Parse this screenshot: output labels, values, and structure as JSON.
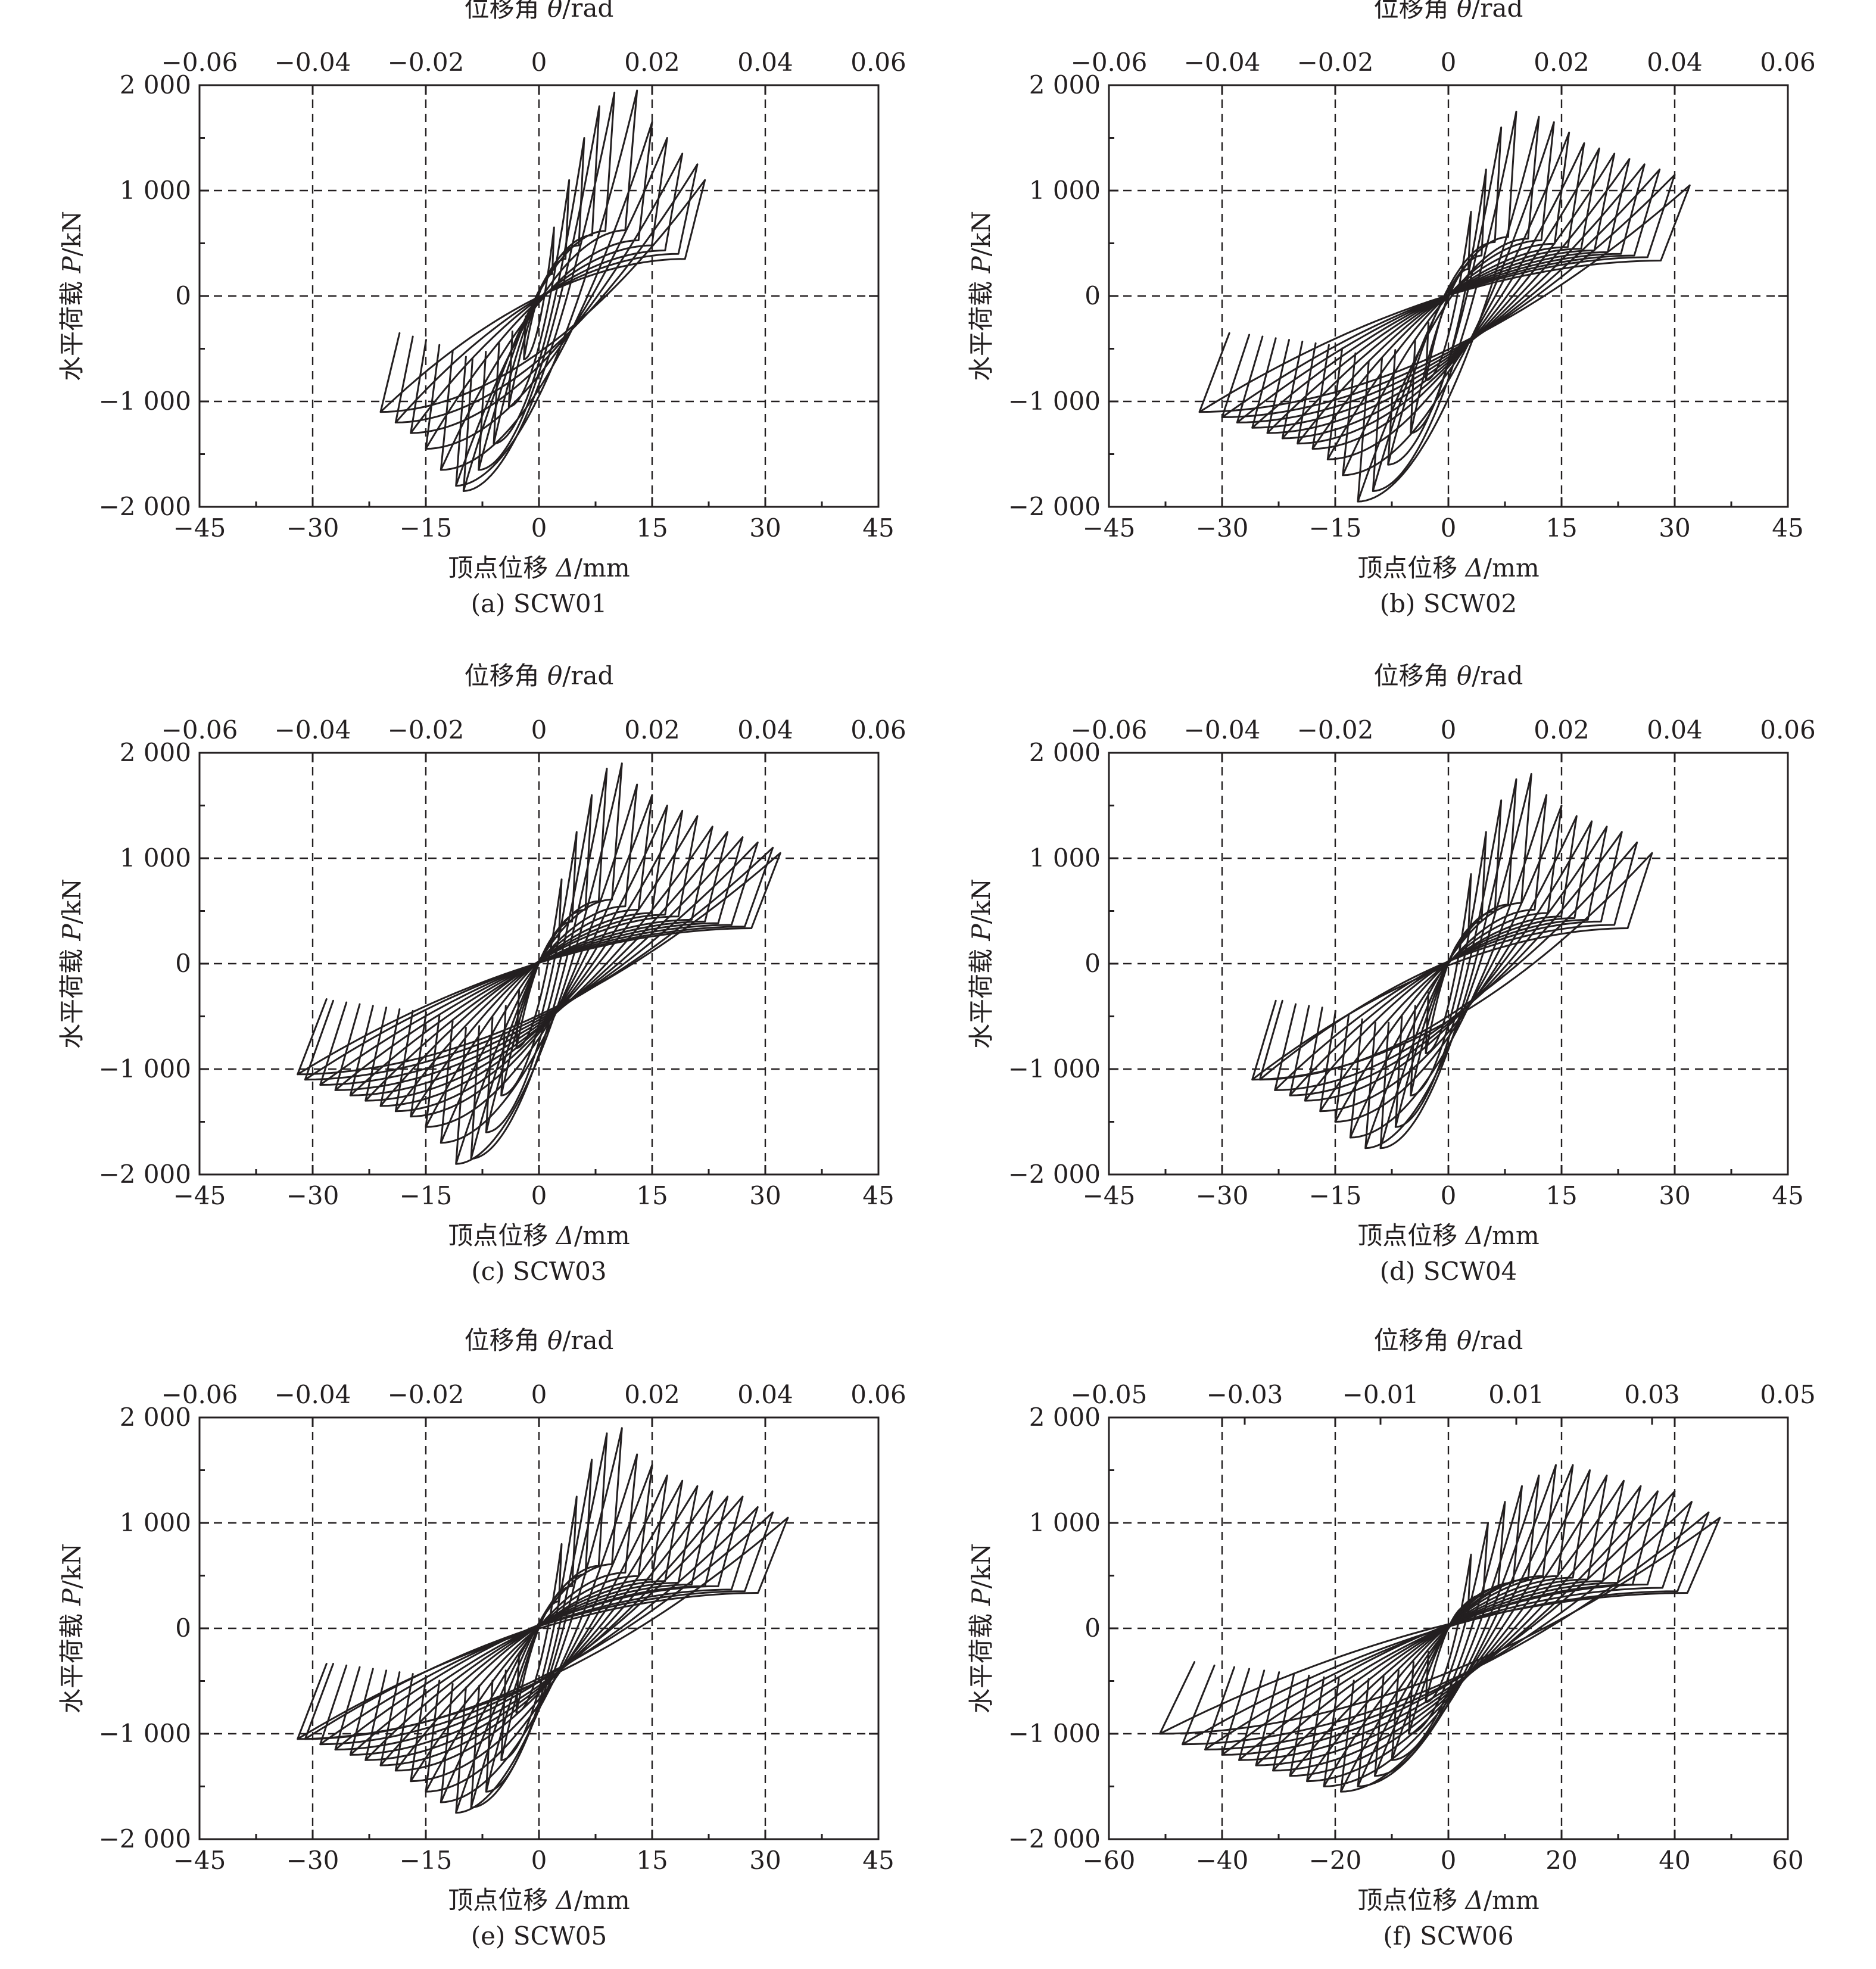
{
  "chart_data": [
    {
      "id": "SCW01",
      "type": "line",
      "caption": "(a) SCW01",
      "xlabel_prefix": "顶点位移 ",
      "xlabel_symbol": "Δ",
      "xlabel_unit": "/mm",
      "ylabel_prefix": "水平荷载 ",
      "ylabel_symbol": "P",
      "ylabel_unit": "/kN",
      "x2label_prefix": "位移角 ",
      "x2label_symbol": "θ",
      "x2label_unit": "/rad",
      "xlim": [
        -45,
        45
      ],
      "ylim": [
        -2000,
        2000
      ],
      "x2lim": [
        -0.06,
        0.06
      ],
      "xticks": [
        -45,
        -30,
        -15,
        0,
        15,
        30,
        45
      ],
      "yticks": [
        -2000,
        -1000,
        0,
        1000,
        2000
      ],
      "x2ticks": [
        -0.06,
        -0.04,
        -0.02,
        0,
        0.02,
        0.04,
        0.06
      ],
      "xtick_labels": [
        "−45",
        "−30",
        "−15",
        "0",
        "15",
        "30",
        "45"
      ],
      "ytick_labels": [
        "−2 000",
        "−1 000",
        "0",
        "1 000",
        "2 000"
      ],
      "x2tick_labels": [
        "−0.06",
        "−0.04",
        "−0.02",
        "0",
        "0.02",
        "0.04",
        "0.06"
      ],
      "grid": "dashed",
      "hysteresis_loops": [
        {
          "dmax": 2,
          "pmax": 650,
          "dmin": -2,
          "pmin": -600
        },
        {
          "dmax": 4,
          "pmax": 1100,
          "dmin": -4,
          "pmin": -1050
        },
        {
          "dmax": 6,
          "pmax": 1500,
          "dmin": -6,
          "pmin": -1400
        },
        {
          "dmax": 8,
          "pmax": 1800,
          "dmin": -8,
          "pmin": -1650
        },
        {
          "dmax": 10,
          "pmax": 1930,
          "dmin": -10,
          "pmin": -1850
        },
        {
          "dmax": 13,
          "pmax": 1950,
          "dmin": -11,
          "pmin": -1800
        },
        {
          "dmax": 15,
          "pmax": 1650,
          "dmin": -13,
          "pmin": -1650
        },
        {
          "dmax": 17,
          "pmax": 1500,
          "dmin": -15,
          "pmin": -1450
        },
        {
          "dmax": 19,
          "pmax": 1350,
          "dmin": -17,
          "pmin": -1300
        },
        {
          "dmax": 21,
          "pmax": 1250,
          "dmin": -19,
          "pmin": -1200
        },
        {
          "dmax": 22,
          "pmax": 1100,
          "dmin": -21,
          "pmin": -1100
        }
      ]
    },
    {
      "id": "SCW02",
      "type": "line",
      "caption": "(b) SCW02",
      "xlabel_prefix": "顶点位移 ",
      "xlabel_symbol": "Δ",
      "xlabel_unit": "/mm",
      "ylabel_prefix": "水平荷载 ",
      "ylabel_symbol": "P",
      "ylabel_unit": "/kN",
      "x2label_prefix": "位移角 ",
      "x2label_symbol": "θ",
      "x2label_unit": "/rad",
      "xlim": [
        -45,
        45
      ],
      "ylim": [
        -2000,
        2000
      ],
      "x2lim": [
        -0.06,
        0.06
      ],
      "xticks": [
        -45,
        -30,
        -15,
        0,
        15,
        30,
        45
      ],
      "yticks": [
        -2000,
        -1000,
        0,
        1000,
        2000
      ],
      "x2ticks": [
        -0.06,
        -0.04,
        -0.02,
        0,
        0.02,
        0.04,
        0.06
      ],
      "xtick_labels": [
        "−45",
        "−30",
        "−15",
        "0",
        "15",
        "30",
        "45"
      ],
      "ytick_labels": [
        "−2 000",
        "−1 000",
        "0",
        "1 000",
        "2 000"
      ],
      "x2tick_labels": [
        "−0.06",
        "−0.04",
        "−0.02",
        "0",
        "0.02",
        "0.04",
        "0.06"
      ],
      "grid": "dashed",
      "hysteresis_loops": [
        {
          "dmax": 3,
          "pmax": 800,
          "dmin": -3,
          "pmin": -800
        },
        {
          "dmax": 5,
          "pmax": 1200,
          "dmin": -5,
          "pmin": -1300
        },
        {
          "dmax": 7,
          "pmax": 1600,
          "dmin": -8,
          "pmin": -1600
        },
        {
          "dmax": 9,
          "pmax": 1750,
          "dmin": -10,
          "pmin": -1850
        },
        {
          "dmax": 12,
          "pmax": 1700,
          "dmin": -12,
          "pmin": -1950
        },
        {
          "dmax": 14,
          "pmax": 1650,
          "dmin": -14,
          "pmin": -1700
        },
        {
          "dmax": 16,
          "pmax": 1550,
          "dmin": -16,
          "pmin": -1550
        },
        {
          "dmax": 18,
          "pmax": 1450,
          "dmin": -18,
          "pmin": -1450
        },
        {
          "dmax": 20,
          "pmax": 1400,
          "dmin": -20,
          "pmin": -1400
        },
        {
          "dmax": 22,
          "pmax": 1350,
          "dmin": -22,
          "pmin": -1350
        },
        {
          "dmax": 24,
          "pmax": 1300,
          "dmin": -24,
          "pmin": -1300
        },
        {
          "dmax": 26,
          "pmax": 1250,
          "dmin": -26,
          "pmin": -1250
        },
        {
          "dmax": 28,
          "pmax": 1200,
          "dmin": -28,
          "pmin": -1200
        },
        {
          "dmax": 30,
          "pmax": 1150,
          "dmin": -30,
          "pmin": -1150
        },
        {
          "dmax": 32,
          "pmax": 1050,
          "dmin": -33,
          "pmin": -1100
        }
      ]
    },
    {
      "id": "SCW03",
      "type": "line",
      "caption": "(c) SCW03",
      "xlabel_prefix": "顶点位移 ",
      "xlabel_symbol": "Δ",
      "xlabel_unit": "/mm",
      "ylabel_prefix": "水平荷载 ",
      "ylabel_symbol": "P",
      "ylabel_unit": "/kN",
      "x2label_prefix": "位移角 ",
      "x2label_symbol": "θ",
      "x2label_unit": "/rad",
      "xlim": [
        -45,
        45
      ],
      "ylim": [
        -2000,
        2000
      ],
      "x2lim": [
        -0.06,
        0.06
      ],
      "xticks": [
        -45,
        -30,
        -15,
        0,
        15,
        30,
        45
      ],
      "yticks": [
        -2000,
        -1000,
        0,
        1000,
        2000
      ],
      "x2ticks": [
        -0.06,
        -0.04,
        -0.02,
        0,
        0.02,
        0.04,
        0.06
      ],
      "xtick_labels": [
        "−45",
        "−30",
        "−15",
        "0",
        "15",
        "30",
        "45"
      ],
      "ytick_labels": [
        "−2 000",
        "−1 000",
        "0",
        "1 000",
        "2 000"
      ],
      "x2tick_labels": [
        "−0.06",
        "−0.04",
        "−0.02",
        "0",
        "0.02",
        "0.04",
        "0.06"
      ],
      "grid": "dashed",
      "hysteresis_loops": [
        {
          "dmax": 3,
          "pmax": 800,
          "dmin": -3,
          "pmin": -800
        },
        {
          "dmax": 5,
          "pmax": 1250,
          "dmin": -5,
          "pmin": -1250
        },
        {
          "dmax": 7,
          "pmax": 1600,
          "dmin": -7,
          "pmin": -1600
        },
        {
          "dmax": 9,
          "pmax": 1850,
          "dmin": -9,
          "pmin": -1850
        },
        {
          "dmax": 11,
          "pmax": 1900,
          "dmin": -11,
          "pmin": -1900
        },
        {
          "dmax": 13,
          "pmax": 1700,
          "dmin": -13,
          "pmin": -1700
        },
        {
          "dmax": 15,
          "pmax": 1600,
          "dmin": -15,
          "pmin": -1550
        },
        {
          "dmax": 17,
          "pmax": 1500,
          "dmin": -17,
          "pmin": -1450
        },
        {
          "dmax": 19,
          "pmax": 1450,
          "dmin": -19,
          "pmin": -1400
        },
        {
          "dmax": 21,
          "pmax": 1400,
          "dmin": -21,
          "pmin": -1350
        },
        {
          "dmax": 23,
          "pmax": 1300,
          "dmin": -23,
          "pmin": -1300
        },
        {
          "dmax": 25,
          "pmax": 1250,
          "dmin": -25,
          "pmin": -1250
        },
        {
          "dmax": 27,
          "pmax": 1200,
          "dmin": -27,
          "pmin": -1200
        },
        {
          "dmax": 29,
          "pmax": 1150,
          "dmin": -29,
          "pmin": -1150
        },
        {
          "dmax": 31,
          "pmax": 1100,
          "dmin": -31,
          "pmin": -1100
        },
        {
          "dmax": 32,
          "pmax": 1050,
          "dmin": -32,
          "pmin": -1050
        }
      ]
    },
    {
      "id": "SCW04",
      "type": "line",
      "caption": "(d) SCW04",
      "xlabel_prefix": "顶点位移 ",
      "xlabel_symbol": "Δ",
      "xlabel_unit": "/mm",
      "ylabel_prefix": "水平荷载 ",
      "ylabel_symbol": "P",
      "ylabel_unit": "/kN",
      "x2label_prefix": "位移角 ",
      "x2label_symbol": "θ",
      "x2label_unit": "/rad",
      "xlim": [
        -45,
        45
      ],
      "ylim": [
        -2000,
        2000
      ],
      "x2lim": [
        -0.06,
        0.06
      ],
      "xticks": [
        -45,
        -30,
        -15,
        0,
        15,
        30,
        45
      ],
      "yticks": [
        -2000,
        -1000,
        0,
        1000,
        2000
      ],
      "x2ticks": [
        -0.06,
        -0.04,
        -0.02,
        0,
        0.02,
        0.04,
        0.06
      ],
      "xtick_labels": [
        "−45",
        "−30",
        "−15",
        "0",
        "15",
        "30",
        "45"
      ],
      "ytick_labels": [
        "−2 000",
        "−1 000",
        "0",
        "1 000",
        "2 000"
      ],
      "x2tick_labels": [
        "−0.06",
        "−0.04",
        "−0.02",
        "0",
        "0.02",
        "0.04",
        "0.06"
      ],
      "grid": "dashed",
      "hysteresis_loops": [
        {
          "dmax": 3,
          "pmax": 850,
          "dmin": -3,
          "pmin": -850
        },
        {
          "dmax": 5,
          "pmax": 1250,
          "dmin": -5,
          "pmin": -1250
        },
        {
          "dmax": 7,
          "pmax": 1550,
          "dmin": -7,
          "pmin": -1550
        },
        {
          "dmax": 9,
          "pmax": 1750,
          "dmin": -9,
          "pmin": -1750
        },
        {
          "dmax": 11,
          "pmax": 1800,
          "dmin": -11,
          "pmin": -1750
        },
        {
          "dmax": 13,
          "pmax": 1600,
          "dmin": -13,
          "pmin": -1650
        },
        {
          "dmax": 15,
          "pmax": 1500,
          "dmin": -15,
          "pmin": -1500
        },
        {
          "dmax": 17,
          "pmax": 1400,
          "dmin": -17,
          "pmin": -1400
        },
        {
          "dmax": 19,
          "pmax": 1350,
          "dmin": -19,
          "pmin": -1300
        },
        {
          "dmax": 21,
          "pmax": 1300,
          "dmin": -21,
          "pmin": -1250
        },
        {
          "dmax": 23,
          "pmax": 1250,
          "dmin": -23,
          "pmin": -1200
        },
        {
          "dmax": 25,
          "pmax": 1150,
          "dmin": -25,
          "pmin": -1100
        },
        {
          "dmax": 27,
          "pmax": 1050,
          "dmin": -26,
          "pmin": -1100
        }
      ]
    },
    {
      "id": "SCW05",
      "type": "line",
      "caption": "(e) SCW05",
      "xlabel_prefix": "顶点位移 ",
      "xlabel_symbol": "Δ",
      "xlabel_unit": "/mm",
      "ylabel_prefix": "水平荷载 ",
      "ylabel_symbol": "P",
      "ylabel_unit": "/kN",
      "x2label_prefix": "位移角 ",
      "x2label_symbol": "θ",
      "x2label_unit": "/rad",
      "xlim": [
        -45,
        45
      ],
      "ylim": [
        -2000,
        2000
      ],
      "x2lim": [
        -0.06,
        0.06
      ],
      "xticks": [
        -45,
        -30,
        -15,
        0,
        15,
        30,
        45
      ],
      "yticks": [
        -2000,
        -1000,
        0,
        1000,
        2000
      ],
      "x2ticks": [
        -0.06,
        -0.04,
        -0.02,
        0,
        0.02,
        0.04,
        0.06
      ],
      "xtick_labels": [
        "−45",
        "−30",
        "−15",
        "0",
        "15",
        "30",
        "45"
      ],
      "ytick_labels": [
        "−2 000",
        "−1 000",
        "0",
        "1 000",
        "2 000"
      ],
      "x2tick_labels": [
        "−0.06",
        "−0.04",
        "−0.02",
        "0",
        "0.02",
        "0.04",
        "0.06"
      ],
      "grid": "dashed",
      "hysteresis_loops": [
        {
          "dmax": 3,
          "pmax": 800,
          "dmin": -3,
          "pmin": -800
        },
        {
          "dmax": 5,
          "pmax": 1250,
          "dmin": -5,
          "pmin": -1250
        },
        {
          "dmax": 7,
          "pmax": 1600,
          "dmin": -7,
          "pmin": -1550
        },
        {
          "dmax": 9,
          "pmax": 1850,
          "dmin": -9,
          "pmin": -1700
        },
        {
          "dmax": 11,
          "pmax": 1900,
          "dmin": -11,
          "pmin": -1750
        },
        {
          "dmax": 13,
          "pmax": 1650,
          "dmin": -13,
          "pmin": -1650
        },
        {
          "dmax": 15,
          "pmax": 1550,
          "dmin": -15,
          "pmin": -1550
        },
        {
          "dmax": 17,
          "pmax": 1450,
          "dmin": -17,
          "pmin": -1450
        },
        {
          "dmax": 19,
          "pmax": 1400,
          "dmin": -19,
          "pmin": -1350
        },
        {
          "dmax": 21,
          "pmax": 1350,
          "dmin": -21,
          "pmin": -1300
        },
        {
          "dmax": 23,
          "pmax": 1300,
          "dmin": -23,
          "pmin": -1250
        },
        {
          "dmax": 25,
          "pmax": 1250,
          "dmin": -25,
          "pmin": -1200
        },
        {
          "dmax": 27,
          "pmax": 1250,
          "dmin": -27,
          "pmin": -1150
        },
        {
          "dmax": 29,
          "pmax": 1150,
          "dmin": -29,
          "pmin": -1100
        },
        {
          "dmax": 31,
          "pmax": 1100,
          "dmin": -31,
          "pmin": -1050
        },
        {
          "dmax": 33,
          "pmax": 1050,
          "dmin": -32,
          "pmin": -1050
        }
      ]
    },
    {
      "id": "SCW06",
      "type": "line",
      "caption": "(f) SCW06",
      "xlabel_prefix": "顶点位移 ",
      "xlabel_symbol": "Δ",
      "xlabel_unit": "/mm",
      "ylabel_prefix": "水平荷载 ",
      "ylabel_symbol": "P",
      "ylabel_unit": "/kN",
      "x2label_prefix": "位移角 ",
      "x2label_symbol": "θ",
      "x2label_unit": "/rad",
      "xlim": [
        -60,
        60
      ],
      "ylim": [
        -2000,
        2000
      ],
      "x2lim": [
        -0.05,
        0.05
      ],
      "xticks": [
        -60,
        -40,
        -20,
        0,
        20,
        40,
        60
      ],
      "yticks": [
        -2000,
        -1000,
        0,
        1000,
        2000
      ],
      "x2ticks": [
        -0.05,
        -0.03,
        -0.01,
        0.01,
        0.03,
        0.05
      ],
      "xtick_labels": [
        "−60",
        "−40",
        "−20",
        "0",
        "20",
        "40",
        "60"
      ],
      "ytick_labels": [
        "−2 000",
        "−1 000",
        "0",
        "1 000",
        "2 000"
      ],
      "x2tick_labels": [
        "−0.05",
        "−0.03",
        "−0.01",
        "0.01",
        "0.03",
        "0.05"
      ],
      "grid": "dashed",
      "hysteresis_loops": [
        {
          "dmax": 4,
          "pmax": 700,
          "dmin": -4,
          "pmin": -700
        },
        {
          "dmax": 7,
          "pmax": 1000,
          "dmin": -7,
          "pmin": -1000
        },
        {
          "dmax": 10,
          "pmax": 1200,
          "dmin": -10,
          "pmin": -1250
        },
        {
          "dmax": 13,
          "pmax": 1350,
          "dmin": -13,
          "pmin": -1400
        },
        {
          "dmax": 16,
          "pmax": 1450,
          "dmin": -16,
          "pmin": -1500
        },
        {
          "dmax": 19,
          "pmax": 1550,
          "dmin": -19,
          "pmin": -1550
        },
        {
          "dmax": 22,
          "pmax": 1550,
          "dmin": -22,
          "pmin": -1500
        },
        {
          "dmax": 25,
          "pmax": 1500,
          "dmin": -25,
          "pmin": -1450
        },
        {
          "dmax": 28,
          "pmax": 1450,
          "dmin": -28,
          "pmin": -1400
        },
        {
          "dmax": 31,
          "pmax": 1400,
          "dmin": -31,
          "pmin": -1350
        },
        {
          "dmax": 34,
          "pmax": 1350,
          "dmin": -34,
          "pmin": -1300
        },
        {
          "dmax": 37,
          "pmax": 1300,
          "dmin": -37,
          "pmin": -1250
        },
        {
          "dmax": 40,
          "pmax": 1300,
          "dmin": -40,
          "pmin": -1200
        },
        {
          "dmax": 43,
          "pmax": 1200,
          "dmin": -43,
          "pmin": -1150
        },
        {
          "dmax": 46,
          "pmax": 1100,
          "dmin": -47,
          "pmin": -1100
        },
        {
          "dmax": 48,
          "pmax": 1050,
          "dmin": -51,
          "pmin": -1000
        }
      ]
    }
  ]
}
